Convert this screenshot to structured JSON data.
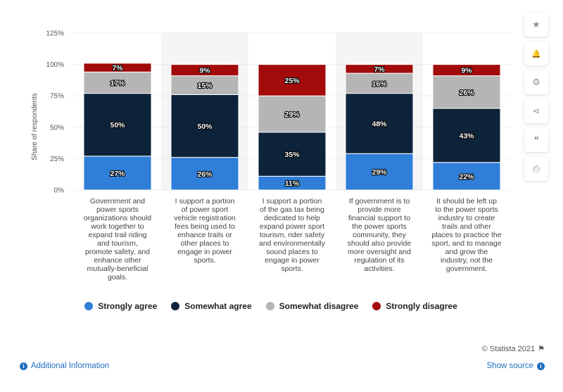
{
  "chart_data": {
    "type": "bar",
    "stacked": true,
    "ylabel": "Share of respondents",
    "ylim": [
      0,
      125
    ],
    "yticks": [
      "0%",
      "25%",
      "50%",
      "75%",
      "100%",
      "125%"
    ],
    "grid": true,
    "legend_position": "bottom",
    "categories": [
      [
        "Government and",
        "power sports",
        "organizations should",
        "work together to",
        "expand trail riding",
        "and tourism,",
        "promote safety, and",
        "enhance other",
        "mutually-beneficial",
        "goals."
      ],
      [
        "I support a portion",
        "of power sport",
        "vehicle registration",
        "fees being used to",
        "enhance trails or",
        "other places to",
        "engage in power",
        "sports."
      ],
      [
        "I support a portion",
        "of the gas tax being",
        "dedicated to help",
        "expand power sport",
        "tourism, rider safety",
        "and environmentally",
        "sound places to",
        "engage in power",
        "sports."
      ],
      [
        "If government is to",
        "provide more",
        "financial support to",
        "the power sports",
        "community, they",
        "should also provide",
        "more oversight and",
        "regulation of its",
        "activities."
      ],
      [
        "It should be left up",
        "to the power sports",
        "industry to create",
        "trails and other",
        "places to practice the",
        "sport, and to manage",
        "and grow the",
        "industry, not the",
        "government."
      ]
    ],
    "series": [
      {
        "name": "Strongly agree",
        "color": "#2f7ed8",
        "values": [
          27,
          26,
          11,
          29,
          22
        ],
        "labels": [
          "27%",
          "26%",
          "11%",
          "29%",
          "22%"
        ]
      },
      {
        "name": "Somewhat agree",
        "color": "#0d233a",
        "values": [
          50,
          50,
          35,
          48,
          43
        ],
        "labels": [
          "50%",
          "50%",
          "35%",
          "48%",
          "43%"
        ]
      },
      {
        "name": "Somewhat disagree",
        "color": "#b5b5b5",
        "values": [
          17,
          15,
          29,
          16,
          26
        ],
        "labels": [
          "17%",
          "15%",
          "29%",
          "16%",
          "26%"
        ]
      },
      {
        "name": "Strongly disagree",
        "color": "#a30b0b",
        "values": [
          7,
          9,
          25,
          7,
          9
        ],
        "labels": [
          "7%",
          "9%",
          "25%",
          "7%",
          "9%"
        ]
      }
    ]
  },
  "toolbar": {
    "buttons": [
      {
        "icon": "star-icon",
        "glyph": "★"
      },
      {
        "icon": "bell-icon",
        "glyph": "🔔"
      },
      {
        "icon": "gear-icon",
        "glyph": "⚙"
      },
      {
        "icon": "share-icon",
        "glyph": "⋖"
      },
      {
        "icon": "quote-icon",
        "glyph": "❝"
      },
      {
        "icon": "print-icon",
        "glyph": "⎙"
      }
    ]
  },
  "footer": {
    "credit": "© Statista 2021",
    "additional_info": "Additional Information",
    "show_source": "Show source"
  }
}
